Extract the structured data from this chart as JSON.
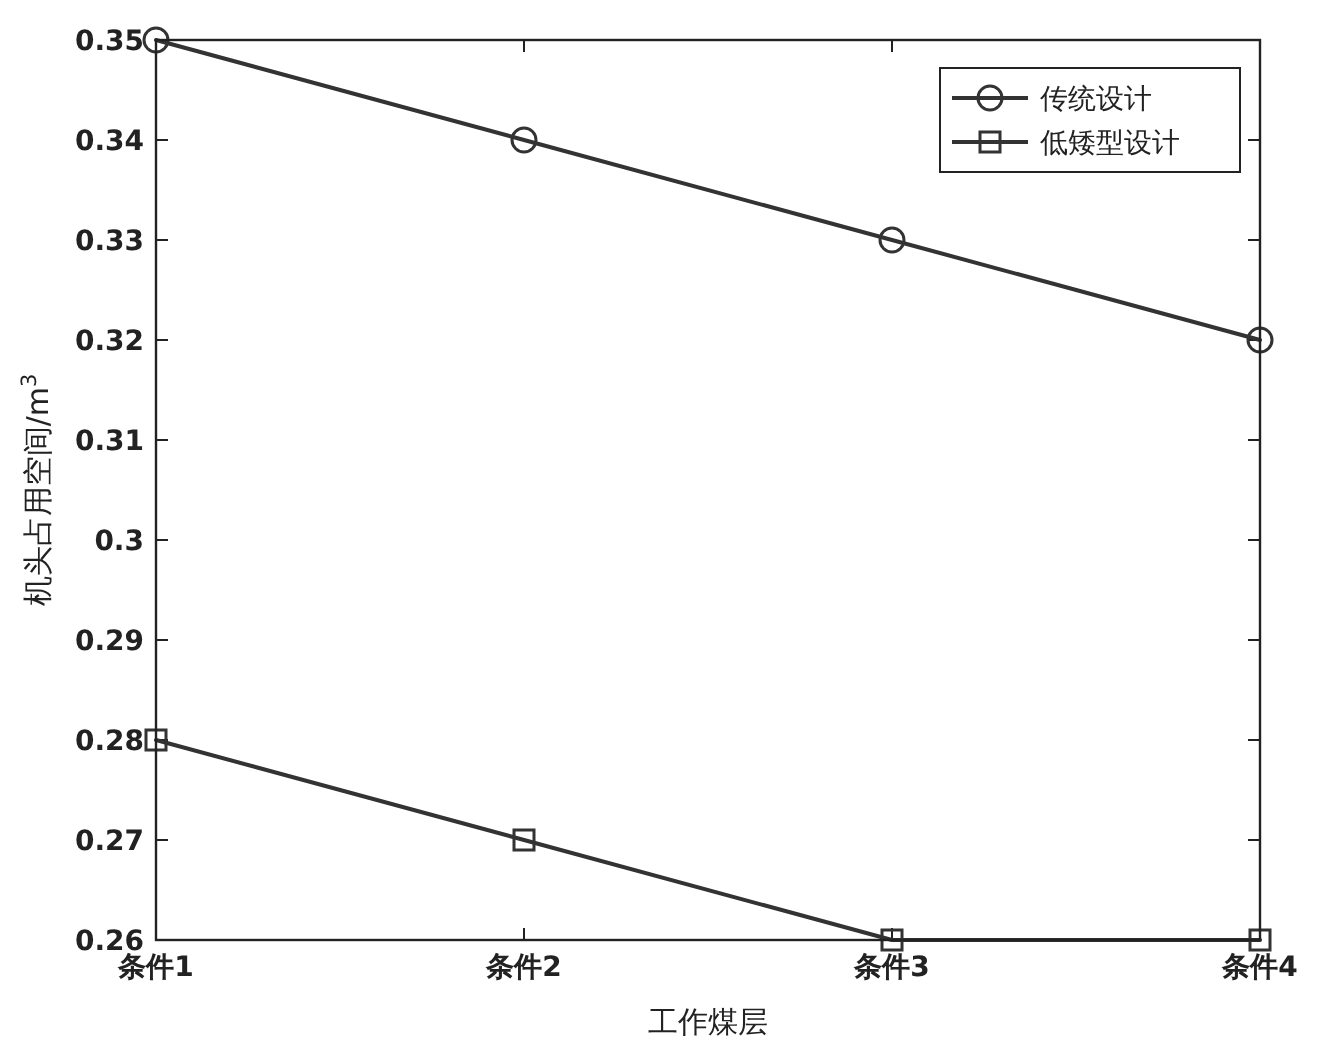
{
  "chart_data": {
    "type": "line",
    "xlabel": "工作煤层",
    "ylabel": "机头占用空间/m$^{3}$",
    "categories": [
      "条件1",
      "条件2",
      "条件3",
      "条件4"
    ],
    "ylim": [
      0.26,
      0.35
    ],
    "yticks": [
      0.26,
      0.27,
      0.28,
      0.29,
      0.3,
      0.31,
      0.32,
      0.33,
      0.34,
      0.35
    ],
    "legend": "top right",
    "grid": false,
    "series": [
      {
        "name": "传统设计",
        "color": "#333333",
        "marker": "circle",
        "values": [
          0.35,
          0.34,
          0.33,
          0.32
        ]
      },
      {
        "name": "低矮型设计",
        "color": "#333333",
        "marker": "square",
        "values": [
          0.28,
          0.27,
          0.26,
          0.26
        ]
      }
    ]
  }
}
